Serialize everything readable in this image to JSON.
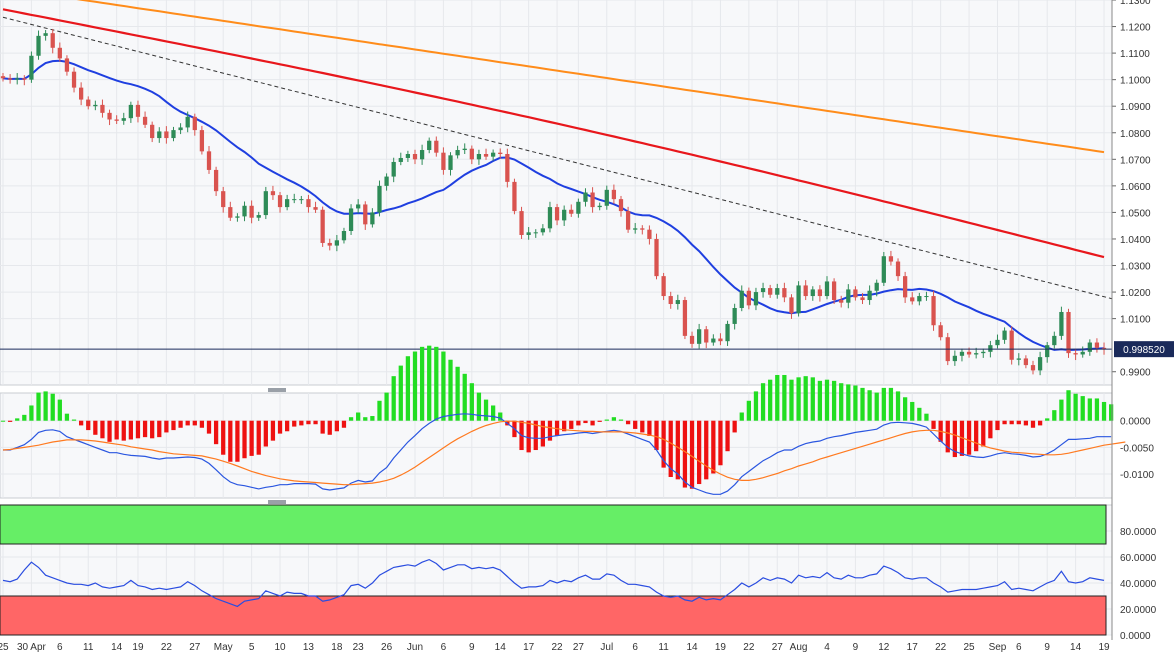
{
  "colors": {
    "background": "#f7f8fa",
    "grid": "#e6e8ec",
    "candle_up": "#2e8b57",
    "candle_down": "#d9534f",
    "sma_blue": "#1f3fe0",
    "sma_red": "#e8171c",
    "sma_orange": "#ff8c1a",
    "trendline": "#333333",
    "price_line": "#1a2a5a",
    "macd_hist_pos": "#22dd22",
    "macd_hist_neg": "#ee1111",
    "macd_line": "#2a56e0",
    "macd_signal": "#ff7a20",
    "rsi_line": "#2a4de0",
    "rsi_overbought_fill": "#66ee66",
    "rsi_oversold_fill": "#ff6666"
  },
  "current_price_label": "0.998520",
  "chart_data": [
    {
      "type": "candlestick",
      "ylim": [
        0.985,
        1.13
      ],
      "yticks": [
        "1.1300",
        "1.1200",
        "1.1100",
        "1.1000",
        "1.0900",
        "1.0800",
        "1.0700",
        "1.0600",
        "1.0500",
        "1.0400",
        "1.0300",
        "1.0200",
        "1.0100",
        "0.9900"
      ],
      "ytick_values": [
        1.13,
        1.12,
        1.11,
        1.1,
        1.09,
        1.08,
        1.07,
        1.06,
        1.05,
        1.04,
        1.03,
        1.02,
        1.01,
        0.99
      ],
      "xticks": [
        "25",
        "30 Apr",
        "6",
        "11",
        "14",
        "19",
        "22",
        "27",
        "May",
        "5",
        "10",
        "13",
        "18",
        "23",
        "26",
        "Jun",
        "6",
        "9",
        "14",
        "17",
        "22",
        "27",
        "Jul",
        "6",
        "11",
        "14",
        "19",
        "22",
        "27",
        "Aug",
        "4",
        "9",
        "12",
        "17",
        "22",
        "25",
        "Sep",
        "6",
        "9",
        "14",
        "19"
      ],
      "closes": [
        1.1005,
        1.1,
        1.1005,
        1.1,
        1.109,
        1.1165,
        1.1175,
        1.112,
        1.108,
        1.103,
        1.097,
        1.0925,
        1.09,
        1.0905,
        1.0875,
        1.085,
        1.0845,
        1.0855,
        1.0905,
        1.086,
        1.083,
        1.078,
        1.0805,
        1.078,
        1.081,
        1.082,
        1.086,
        1.081,
        1.073,
        1.066,
        1.058,
        1.052,
        1.048,
        1.0485,
        1.0525,
        1.048,
        1.049,
        1.058,
        1.0565,
        1.052,
        1.055,
        1.055,
        1.055,
        1.052,
        1.051,
        1.0385,
        1.0375,
        1.0395,
        1.043,
        1.0515,
        1.053,
        1.0455,
        1.05,
        1.06,
        1.0635,
        1.069,
        1.0705,
        1.072,
        1.07,
        1.0735,
        1.077,
        1.0725,
        1.066,
        1.0715,
        1.0735,
        1.074,
        1.07,
        1.072,
        1.071,
        1.0725,
        1.072,
        1.0615,
        1.0505,
        1.0415,
        1.0425,
        1.0425,
        1.044,
        1.052,
        1.047,
        1.051,
        1.0495,
        1.054,
        1.0575,
        1.052,
        1.0525,
        1.0585,
        1.055,
        1.0505,
        1.0435,
        1.044,
        1.0435,
        1.04,
        1.026,
        1.0185,
        1.0155,
        1.017,
        1.0035,
        1.0005,
        1.006,
        1.001,
        1.0025,
        1.0015,
        1.008,
        1.014,
        1.0205,
        1.015,
        1.02,
        1.0215,
        1.019,
        1.0215,
        1.018,
        1.012,
        1.0225,
        1.0185,
        1.021,
        1.0185,
        1.024,
        1.017,
        1.016,
        1.021,
        1.018,
        1.017,
        1.0205,
        1.0235,
        1.0335,
        1.0315,
        1.026,
        1.018,
        1.0165,
        1.0185,
        1.0185,
        1.0075,
        1.003,
        0.994,
        0.996,
        0.9975,
        0.9965,
        0.997,
        0.9975,
        1.0,
        1.002,
        1.0055,
        0.9945,
        0.995,
        0.9925,
        0.9905,
        0.9955,
        1.0,
        1.0035,
        1.0125,
        0.997,
        0.9965,
        0.9975,
        1.001,
        0.999,
        0.9985
      ]
    },
    {
      "type": "histogram_line",
      "ylim": [
        -0.0145,
        0.0052
      ],
      "yticks": [
        "0.0000",
        "-0.0050",
        "-0.0100"
      ],
      "ytick_values": [
        0.0,
        -0.005,
        -0.01
      ],
      "macd": [
        -0.0055,
        -0.0055,
        -0.005,
        -0.0045,
        -0.0035,
        -0.0022,
        -0.0018,
        -0.0017,
        -0.002,
        -0.003,
        -0.0035,
        -0.004,
        -0.0045,
        -0.005,
        -0.0055,
        -0.006,
        -0.006,
        -0.0063,
        -0.0065,
        -0.0066,
        -0.0067,
        -0.007,
        -0.0072,
        -0.007,
        -0.007,
        -0.0069,
        -0.0068,
        -0.0069,
        -0.0072,
        -0.008,
        -0.0092,
        -0.0105,
        -0.0115,
        -0.012,
        -0.0122,
        -0.0125,
        -0.0128,
        -0.0125,
        -0.0123,
        -0.012,
        -0.012,
        -0.0118,
        -0.0118,
        -0.0118,
        -0.0119,
        -0.0128,
        -0.013,
        -0.0128,
        -0.0126,
        -0.0117,
        -0.0112,
        -0.0115,
        -0.0113,
        -0.0098,
        -0.0088,
        -0.007,
        -0.0055,
        -0.004,
        -0.0028,
        -0.0015,
        -0.0005,
        0.0003,
        0.0008,
        0.001,
        0.0012,
        0.0013,
        0.0012,
        0.001,
        0.0009,
        0.0008,
        0.0005,
        -0.0005,
        -0.0015,
        -0.0028,
        -0.0032,
        -0.0033,
        -0.0033,
        -0.003,
        -0.0028,
        -0.0026,
        -0.0025,
        -0.0023,
        -0.0022,
        -0.0024,
        -0.0022,
        -0.002,
        -0.0018,
        -0.002,
        -0.0025,
        -0.003,
        -0.0035,
        -0.004,
        -0.0055,
        -0.0075,
        -0.009,
        -0.01,
        -0.0115,
        -0.0125,
        -0.013,
        -0.0135,
        -0.0138,
        -0.0138,
        -0.0132,
        -0.012,
        -0.0105,
        -0.0095,
        -0.0085,
        -0.0075,
        -0.0068,
        -0.006,
        -0.0055,
        -0.0055,
        -0.0048,
        -0.0043,
        -0.004,
        -0.0038,
        -0.0033,
        -0.003,
        -0.0028,
        -0.0025,
        -0.0022,
        -0.002,
        -0.0018,
        -0.0016,
        -0.0008,
        -0.0004,
        -0.0003,
        -0.0004,
        -0.0005,
        -0.0008,
        -0.0012,
        -0.0025,
        -0.0038,
        -0.005,
        -0.0058,
        -0.0062,
        -0.0066,
        -0.0068,
        -0.0069,
        -0.0066,
        -0.0062,
        -0.006,
        -0.0062,
        -0.0063,
        -0.0065,
        -0.0068,
        -0.0067,
        -0.0062,
        -0.0055,
        -0.0045,
        -0.0035,
        -0.0035,
        -0.0034,
        -0.0033,
        -0.003,
        -0.003,
        -0.003
      ],
      "signal": [
        -0.0055,
        -0.0054,
        -0.0052,
        -0.005,
        -0.0048,
        -0.0046,
        -0.0043,
        -0.004,
        -0.0038,
        -0.0036,
        -0.0036,
        -0.0036,
        -0.0037,
        -0.0038,
        -0.004,
        -0.0042,
        -0.0044,
        -0.0046,
        -0.0049,
        -0.0051,
        -0.0053,
        -0.0055,
        -0.0058,
        -0.006,
        -0.0062,
        -0.0063,
        -0.0064,
        -0.0065,
        -0.0066,
        -0.0069,
        -0.0072,
        -0.0076,
        -0.008,
        -0.0085,
        -0.009,
        -0.0095,
        -0.0099,
        -0.0103,
        -0.0106,
        -0.0109,
        -0.0111,
        -0.0113,
        -0.0114,
        -0.0115,
        -0.0116,
        -0.0117,
        -0.0118,
        -0.0119,
        -0.012,
        -0.012,
        -0.0119,
        -0.0118,
        -0.0117,
        -0.0115,
        -0.0112,
        -0.0108,
        -0.0102,
        -0.0095,
        -0.0087,
        -0.0078,
        -0.0069,
        -0.006,
        -0.0051,
        -0.0042,
        -0.0034,
        -0.0027,
        -0.002,
        -0.0014,
        -0.0009,
        -0.0005,
        -0.0002,
        -0.0001,
        -0.0001,
        -0.0003,
        -0.0005,
        -0.0008,
        -0.0011,
        -0.0013,
        -0.0015,
        -0.0017,
        -0.0018,
        -0.0019,
        -0.002,
        -0.002,
        -0.0021,
        -0.0021,
        -0.0021,
        -0.0021,
        -0.0022,
        -0.0023,
        -0.0025,
        -0.0027,
        -0.003,
        -0.0035,
        -0.0042,
        -0.005,
        -0.0058,
        -0.0067,
        -0.0076,
        -0.0085,
        -0.0093,
        -0.01,
        -0.0106,
        -0.011,
        -0.0112,
        -0.0112,
        -0.011,
        -0.0107,
        -0.0103,
        -0.0099,
        -0.0094,
        -0.009,
        -0.0085,
        -0.0081,
        -0.0077,
        -0.0072,
        -0.0068,
        -0.0064,
        -0.006,
        -0.0056,
        -0.0052,
        -0.0048,
        -0.0044,
        -0.004,
        -0.0036,
        -0.0032,
        -0.0028,
        -0.0024,
        -0.0021,
        -0.0019,
        -0.0018,
        -0.0018,
        -0.002,
        -0.0023,
        -0.0027,
        -0.0032,
        -0.0037,
        -0.0042,
        -0.0047,
        -0.0051,
        -0.0054,
        -0.0057,
        -0.0059,
        -0.006,
        -0.0061,
        -0.0062,
        -0.0063,
        -0.0064,
        -0.0064,
        -0.0063,
        -0.0061,
        -0.0058,
        -0.0055,
        -0.0052,
        -0.0049,
        -0.0046,
        -0.0044,
        -0.0042,
        -0.004
      ]
    },
    {
      "type": "line",
      "ylim": [
        0,
        100
      ],
      "yticks": [
        "80.0000",
        "60.0000",
        "40.0000",
        "20.0000",
        "0.0000"
      ],
      "ytick_values": [
        80,
        60,
        40,
        20,
        0
      ],
      "overbought": 70,
      "oversold": 30,
      "values": [
        42,
        41,
        43,
        50,
        56,
        52,
        46,
        44,
        42,
        40,
        39,
        39,
        38,
        40,
        37,
        36,
        37,
        38,
        42,
        38,
        37,
        35,
        36,
        35,
        36,
        37,
        41,
        38,
        34,
        31,
        28,
        26,
        24,
        22,
        26,
        27,
        28,
        34,
        32,
        30,
        33,
        32,
        32,
        30,
        30,
        26,
        27,
        29,
        31,
        38,
        39,
        36,
        40,
        46,
        49,
        52,
        53,
        54,
        53,
        56,
        58,
        55,
        50,
        52,
        54,
        54,
        51,
        52,
        51,
        52,
        50,
        45,
        40,
        36,
        37,
        37,
        38,
        42,
        40,
        42,
        41,
        44,
        46,
        43,
        43,
        47,
        46,
        42,
        39,
        39,
        38,
        37,
        33,
        30,
        29,
        30,
        27,
        26,
        29,
        27,
        28,
        27,
        31,
        35,
        40,
        37,
        40,
        44,
        42,
        44,
        43,
        40,
        46,
        44,
        45,
        44,
        48,
        44,
        43,
        46,
        44,
        44,
        46,
        47,
        53,
        51,
        48,
        44,
        43,
        44,
        44,
        40,
        37,
        33,
        34,
        35,
        35,
        35,
        36,
        37,
        38,
        41,
        35,
        36,
        35,
        34,
        37,
        40,
        42,
        49,
        41,
        40,
        41,
        44,
        43,
        42
      ]
    }
  ]
}
